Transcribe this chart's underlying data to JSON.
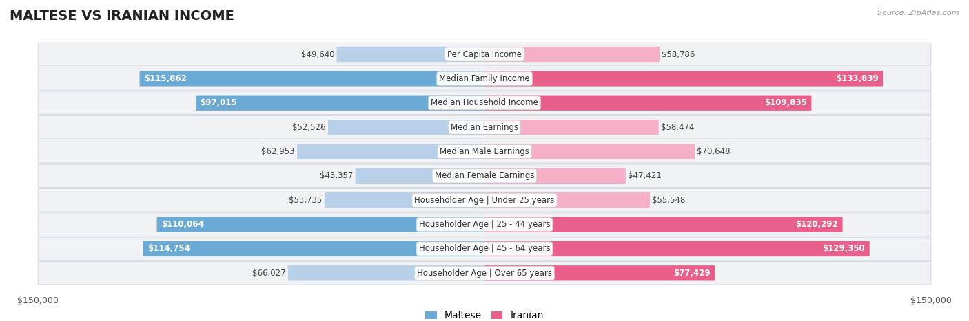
{
  "title": "MALTESE VS IRANIAN INCOME",
  "source": "Source: ZipAtlas.com",
  "categories": [
    "Per Capita Income",
    "Median Family Income",
    "Median Household Income",
    "Median Earnings",
    "Median Male Earnings",
    "Median Female Earnings",
    "Householder Age | Under 25 years",
    "Householder Age | 25 - 44 years",
    "Householder Age | 45 - 64 years",
    "Householder Age | Over 65 years"
  ],
  "maltese_values": [
    49640,
    115862,
    97015,
    52526,
    62953,
    43357,
    53735,
    110064,
    114754,
    66027
  ],
  "iranian_values": [
    58786,
    133839,
    109835,
    58474,
    70648,
    47421,
    55548,
    120292,
    129350,
    77429
  ],
  "maltese_labels": [
    "$49,640",
    "$115,862",
    "$97,015",
    "$52,526",
    "$62,953",
    "$43,357",
    "$53,735",
    "$110,064",
    "$114,754",
    "$66,027"
  ],
  "iranian_labels": [
    "$58,786",
    "$133,839",
    "$109,835",
    "$58,474",
    "$70,648",
    "$47,421",
    "$55,548",
    "$120,292",
    "$129,350",
    "$77,429"
  ],
  "max_value": 150000,
  "maltese_color_light": "#b8d0e8",
  "maltese_color_dark": "#6aaad4",
  "iranian_color_light": "#f5b0c8",
  "iranian_color_dark": "#e8608a",
  "row_bg_color": "#f0f2f5",
  "row_border_color": "#d8dce0",
  "label_fontsize": 8.5,
  "title_fontsize": 14,
  "legend_fontsize": 10,
  "white_label_threshold": 75000,
  "background_color": "#ffffff"
}
